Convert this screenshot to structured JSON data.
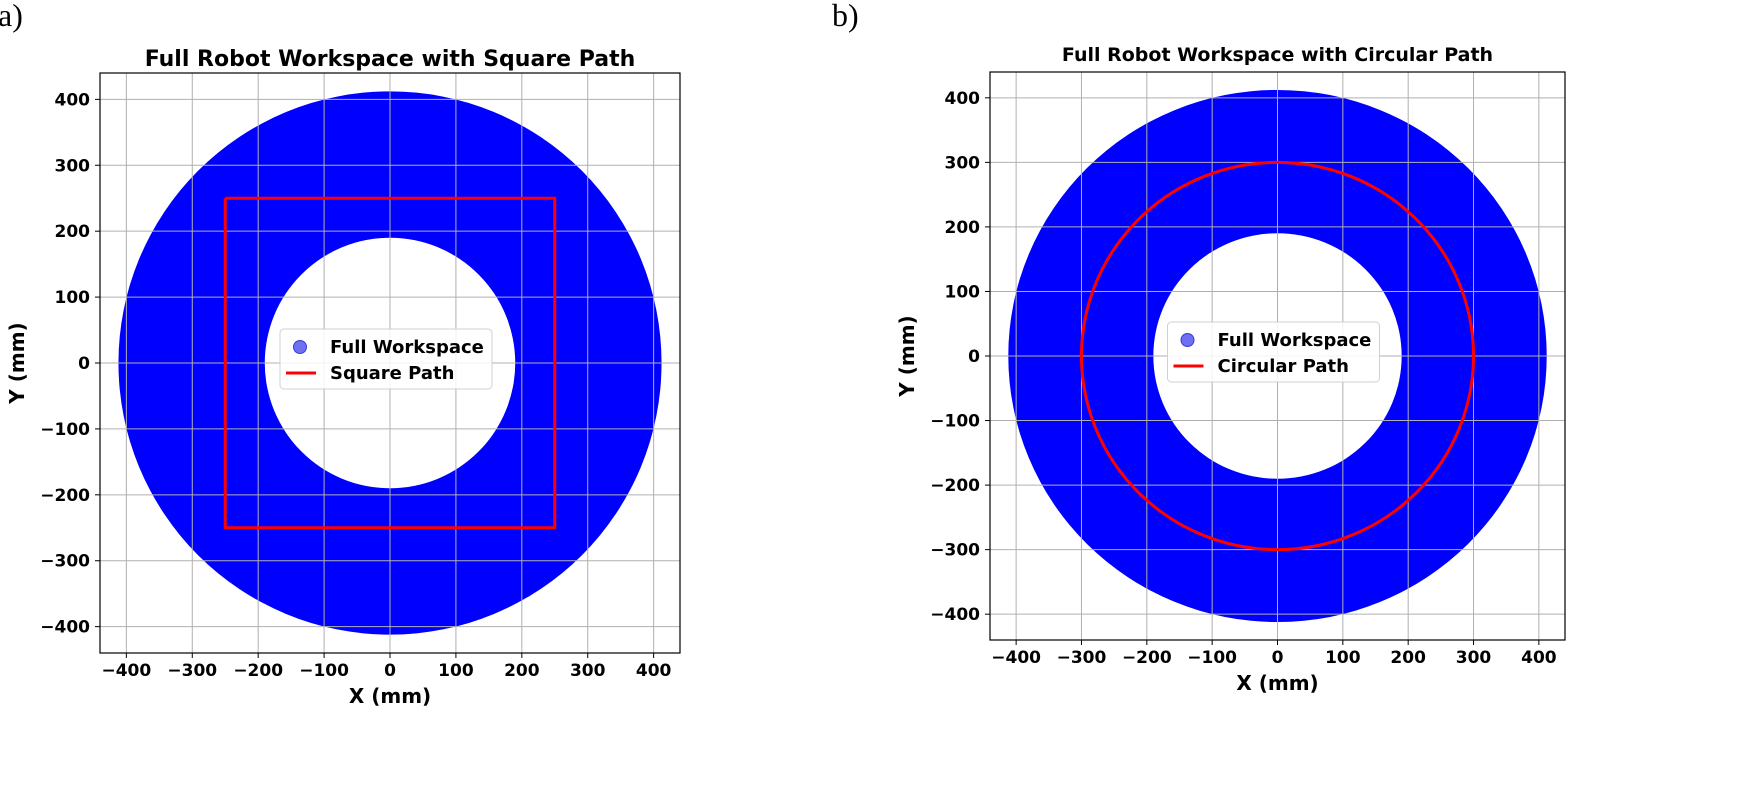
{
  "chart_data": [
    {
      "type": "scatter",
      "panel_label": "a)",
      "title": "Full Robot Workspace with Square Path",
      "xlabel": "X (mm)",
      "ylabel": "Y (mm)",
      "xlim": [
        -440,
        440
      ],
      "ylim": [
        -440,
        440
      ],
      "xticks": [
        -400,
        -300,
        -200,
        -100,
        0,
        100,
        200,
        300,
        400
      ],
      "yticks": [
        -400,
        -300,
        -200,
        -100,
        0,
        100,
        200,
        300,
        400
      ],
      "grid": true,
      "legend_position": "center",
      "series": [
        {
          "name": "Full Workspace",
          "kind": "annulus",
          "inner_radius": 190,
          "outer_radius": 412,
          "color": "#0000ff"
        },
        {
          "name": "Square Path",
          "kind": "line",
          "color": "#ff0000",
          "x": [
            -250,
            250,
            250,
            -250,
            -250
          ],
          "y": [
            250,
            250,
            -250,
            -250,
            250
          ]
        }
      ]
    },
    {
      "type": "scatter",
      "panel_label": "b)",
      "title": "Full Robot Workspace with Circular Path",
      "xlabel": "X (mm)",
      "ylabel": "Y (mm)",
      "xlim": [
        -440,
        440
      ],
      "ylim": [
        -440,
        440
      ],
      "xticks": [
        -400,
        -300,
        -200,
        -100,
        0,
        100,
        200,
        300,
        400
      ],
      "yticks": [
        -400,
        -300,
        -200,
        -100,
        0,
        100,
        200,
        300,
        400
      ],
      "grid": true,
      "legend_position": "center",
      "series": [
        {
          "name": "Full Workspace",
          "kind": "annulus",
          "inner_radius": 190,
          "outer_radius": 412,
          "color": "#0000ff"
        },
        {
          "name": "Circular Path",
          "kind": "circle",
          "radius": 300,
          "center": [
            0,
            0
          ],
          "color": "#ff0000"
        }
      ]
    }
  ]
}
